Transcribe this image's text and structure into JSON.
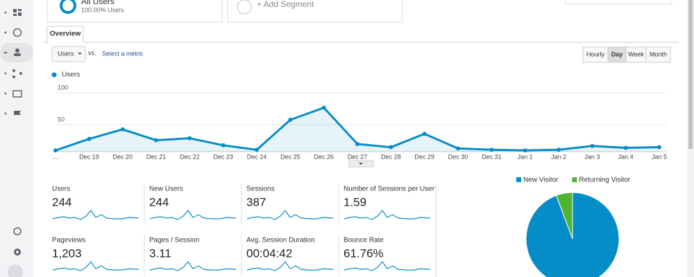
{
  "segments": [
    {
      "name": "All Users",
      "detail": "100.00% Users"
    },
    {
      "name": "+ Add Segment"
    }
  ],
  "tab": "Overview",
  "metric_select": "Users",
  "vs": "vs.",
  "select_metric": "Select a metric",
  "periods": [
    "Hourly",
    "Day",
    "Week",
    "Month"
  ],
  "selected_period_index": 1,
  "chart_data": [
    {
      "type": "line",
      "categories": [
        "…",
        "Dec 19",
        "Dec 20",
        "Dec 21",
        "Dec 22",
        "Dec 23",
        "Dec 24",
        "Dec 25",
        "Dec 26",
        "Dec 27",
        "Dec 28",
        "Dec 29",
        "Dec 30",
        "Dec 31",
        "Jan 1",
        "Jan 2",
        "Jan 3",
        "Jan 4",
        "Jan 5"
      ],
      "series": [
        {
          "name": "Users",
          "color": "#058dc7",
          "values": [
            2,
            20,
            35,
            18,
            21,
            10,
            3,
            50,
            69,
            12,
            7,
            28,
            5,
            3,
            2,
            3,
            9,
            6,
            7
          ]
        }
      ],
      "ylim": [
        0,
        100
      ],
      "yticks": [
        50,
        100
      ],
      "grid": true
    },
    {
      "type": "pie",
      "categories": [
        "New Visitor",
        "Returning Visitor"
      ],
      "values": [
        94.3,
        5.7
      ],
      "colors": [
        "#058dc7",
        "#50b432"
      ]
    }
  ],
  "metrics": [
    {
      "label": "Users",
      "value": "244"
    },
    {
      "label": "New Users",
      "value": "244"
    },
    {
      "label": "Sessions",
      "value": "387"
    },
    {
      "label": "Number of Sessions per User",
      "value": "1.59"
    },
    {
      "label": "Pageviews",
      "value": "1,203"
    },
    {
      "label": "Pages / Session",
      "value": "3.11"
    },
    {
      "label": "Avg. Session Duration",
      "value": "00:04:42"
    },
    {
      "label": "Bounce Rate",
      "value": "61.76%"
    }
  ]
}
